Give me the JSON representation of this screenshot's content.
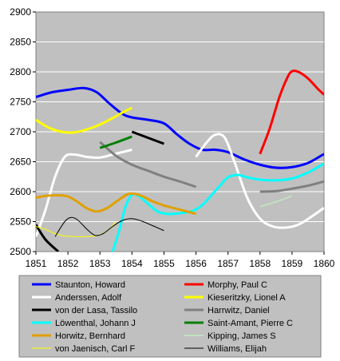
{
  "chart_data": {
    "type": "line",
    "title": "",
    "xlabel": "",
    "ylabel": "",
    "xlim": [
      1851,
      1860
    ],
    "ylim": [
      2500,
      2900
    ],
    "x_ticks": [
      "1851",
      "1852",
      "1853",
      "1854",
      "1855",
      "1856",
      "1857",
      "1858",
      "1859",
      "1860"
    ],
    "y_ticks": [
      "2500",
      "2550",
      "2600",
      "2650",
      "2700",
      "2750",
      "2800",
      "2850",
      "2900"
    ],
    "grid": "horizontal",
    "legend_position": "bottom",
    "colors": {
      "plot_background": "#c0c0c0",
      "grid": "#ffffff",
      "legend_background": "#c0c0c0"
    },
    "series": [
      {
        "name": "Staunton, Howard",
        "color": "#0000ff",
        "width": 3,
        "points": [
          [
            1851,
            2758
          ],
          [
            1851.5,
            2766
          ],
          [
            1852,
            2770
          ],
          [
            1852.5,
            2773
          ],
          [
            1852.9,
            2766
          ],
          [
            1853.3,
            2747
          ],
          [
            1853.7,
            2730
          ],
          [
            1854,
            2724
          ],
          [
            1854.5,
            2720
          ],
          [
            1855,
            2714
          ],
          [
            1855.4,
            2696
          ],
          [
            1855.8,
            2680
          ],
          [
            1856.2,
            2670
          ],
          [
            1856.6,
            2670
          ],
          [
            1857,
            2666
          ],
          [
            1857.5,
            2654
          ],
          [
            1858,
            2645
          ],
          [
            1858.5,
            2640
          ],
          [
            1859,
            2641
          ],
          [
            1859.5,
            2648
          ],
          [
            1860,
            2663
          ]
        ]
      },
      {
        "name": "Morphy, Paul C",
        "color": "#ff0000",
        "width": 3,
        "points": [
          [
            1858,
            2663
          ],
          [
            1858.3,
            2705
          ],
          [
            1858.6,
            2757
          ],
          [
            1858.85,
            2790
          ],
          [
            1859,
            2801
          ],
          [
            1859.2,
            2800
          ],
          [
            1859.5,
            2789
          ],
          [
            1859.8,
            2772
          ],
          [
            1860,
            2762
          ]
        ]
      },
      {
        "name": "Anderssen, Adolf",
        "color": "#ffffff",
        "width": 3,
        "points": [
          [
            1851,
            2525
          ],
          [
            1851.3,
            2570
          ],
          [
            1851.6,
            2625
          ],
          [
            1851.9,
            2658
          ],
          [
            1852.2,
            2662
          ],
          [
            1852.6,
            2658
          ],
          [
            1853,
            2657
          ],
          [
            1853.4,
            2662
          ],
          [
            1854,
            2670
          ]
        ]
      },
      {
        "name": "Anderssen, Adolf",
        "color": "#ffffff",
        "width": 3,
        "points": [
          [
            1856,
            2658
          ],
          [
            1856.3,
            2680
          ],
          [
            1856.6,
            2695
          ],
          [
            1856.9,
            2690
          ],
          [
            1857.2,
            2650
          ],
          [
            1857.6,
            2590
          ],
          [
            1858,
            2555
          ],
          [
            1858.4,
            2542
          ],
          [
            1858.8,
            2540
          ],
          [
            1859.2,
            2545
          ],
          [
            1859.6,
            2558
          ],
          [
            1860,
            2573
          ]
        ]
      },
      {
        "name": "Kieseritzky, Lionel A",
        "color": "#ffff00",
        "width": 3,
        "points": [
          [
            1851,
            2720
          ],
          [
            1851.4,
            2707
          ],
          [
            1851.8,
            2700
          ],
          [
            1852.2,
            2699
          ],
          [
            1852.6,
            2704
          ],
          [
            1853,
            2712
          ],
          [
            1853.4,
            2723
          ],
          [
            1853.7,
            2732
          ],
          [
            1854,
            2740
          ]
        ]
      },
      {
        "name": "von der Lasa, Tassilo",
        "color": "#000000",
        "width": 3,
        "points": [
          [
            1851,
            2545
          ],
          [
            1851.3,
            2520
          ],
          [
            1851.7,
            2500
          ]
        ]
      },
      {
        "name": "von der Lasa, Tassilo",
        "color": "#000000",
        "width": 3,
        "points": [
          [
            1854,
            2700
          ],
          [
            1855,
            2680
          ]
        ]
      },
      {
        "name": "Harrwitz, Daniel",
        "color": "#808080",
        "width": 3,
        "points": [
          [
            1853,
            2683
          ],
          [
            1853.5,
            2660
          ],
          [
            1854,
            2645
          ],
          [
            1854.5,
            2635
          ],
          [
            1855,
            2625
          ],
          [
            1855.5,
            2617
          ],
          [
            1856,
            2608
          ]
        ]
      },
      {
        "name": "Harrwitz, Daniel",
        "color": "#808080",
        "width": 3,
        "points": [
          [
            1858,
            2600
          ],
          [
            1858.5,
            2601
          ],
          [
            1859,
            2605
          ],
          [
            1859.5,
            2610
          ],
          [
            1860,
            2617
          ]
        ]
      },
      {
        "name": "Löwenthal, Johann J",
        "color": "#00ffff",
        "width": 3,
        "points": [
          [
            1853.4,
            2500
          ],
          [
            1853.6,
            2535
          ],
          [
            1853.8,
            2575
          ],
          [
            1854,
            2595
          ],
          [
            1854.2,
            2593
          ],
          [
            1854.5,
            2580
          ],
          [
            1854.8,
            2567
          ],
          [
            1855.1,
            2563
          ],
          [
            1855.5,
            2564
          ],
          [
            1855.9,
            2568
          ],
          [
            1856.2,
            2578
          ],
          [
            1856.5,
            2595
          ],
          [
            1856.8,
            2613
          ],
          [
            1857,
            2624
          ],
          [
            1857.3,
            2628
          ],
          [
            1857.6,
            2624
          ],
          [
            1858,
            2620
          ],
          [
            1858.5,
            2619
          ],
          [
            1859,
            2622
          ],
          [
            1859.5,
            2632
          ],
          [
            1860,
            2647
          ]
        ]
      },
      {
        "name": "Saint-Amant, Pierre C",
        "color": "#008000",
        "width": 3,
        "points": [
          [
            1853,
            2673
          ],
          [
            1853.5,
            2682
          ],
          [
            1854,
            2692
          ]
        ]
      },
      {
        "name": "Horwitz, Bernhard",
        "color": "#e0a000",
        "width": 3,
        "points": [
          [
            1851,
            2590
          ],
          [
            1851.3,
            2593
          ],
          [
            1851.7,
            2594
          ],
          [
            1852,
            2592
          ],
          [
            1852.3,
            2583
          ],
          [
            1852.6,
            2572
          ],
          [
            1852.9,
            2567
          ],
          [
            1853.2,
            2572
          ],
          [
            1853.5,
            2583
          ],
          [
            1853.8,
            2594
          ],
          [
            1854,
            2597
          ],
          [
            1854.3,
            2593
          ],
          [
            1854.6,
            2585
          ],
          [
            1855,
            2577
          ],
          [
            1855.5,
            2570
          ],
          [
            1856,
            2563
          ]
        ]
      },
      {
        "name": "Kipping, James S",
        "color": "#c0e0c0",
        "width": 2,
        "points": [
          [
            1858,
            2575
          ],
          [
            1858.5,
            2583
          ],
          [
            1859,
            2593
          ]
        ]
      },
      {
        "name": "von Jaenisch, Carl F",
        "color": "#ffff00",
        "width": 1,
        "points": [
          [
            1851,
            2542
          ],
          [
            1851.3,
            2537
          ],
          [
            1851.6,
            2530
          ],
          [
            1851.9,
            2526
          ],
          [
            1852.3,
            2525
          ],
          [
            1852.6,
            2525
          ],
          [
            1853,
            2528
          ],
          [
            1853.3,
            2538
          ],
          [
            1853.5,
            2550
          ]
        ]
      },
      {
        "name": "Williams, Elijah",
        "color": "#000000",
        "width": 1,
        "points": [
          [
            1851.6,
            2525
          ],
          [
            1851.9,
            2550
          ],
          [
            1852.1,
            2557
          ],
          [
            1852.3,
            2553
          ],
          [
            1852.6,
            2537
          ],
          [
            1852.85,
            2527
          ],
          [
            1853.1,
            2530
          ],
          [
            1853.4,
            2542
          ],
          [
            1853.7,
            2552
          ],
          [
            1854,
            2555
          ],
          [
            1854.3,
            2551
          ],
          [
            1854.7,
            2542
          ],
          [
            1855,
            2535
          ]
        ]
      }
    ],
    "legend": [
      {
        "name": "Staunton, Howard",
        "color": "#0000ff",
        "width": 3
      },
      {
        "name": "Morphy, Paul C",
        "color": "#ff0000",
        "width": 3
      },
      {
        "name": "Anderssen, Adolf",
        "color": "#ffffff",
        "width": 3
      },
      {
        "name": "Kieseritzky, Lionel A",
        "color": "#ffff00",
        "width": 3
      },
      {
        "name": "von der Lasa, Tassilo",
        "color": "#000000",
        "width": 3
      },
      {
        "name": "Harrwitz, Daniel",
        "color": "#808080",
        "width": 3
      },
      {
        "name": "Löwenthal, Johann J",
        "color": "#00ffff",
        "width": 3
      },
      {
        "name": "Saint-Amant, Pierre C",
        "color": "#008000",
        "width": 3
      },
      {
        "name": "Horwitz, Bernhard",
        "color": "#e0a000",
        "width": 3
      },
      {
        "name": "Kipping, James S",
        "color": "#c0e0c0",
        "width": 2
      },
      {
        "name": "von Jaenisch, Carl F",
        "color": "#ffff00",
        "width": 1
      },
      {
        "name": "Williams, Elijah",
        "color": "#000000",
        "width": 1
      }
    ]
  }
}
